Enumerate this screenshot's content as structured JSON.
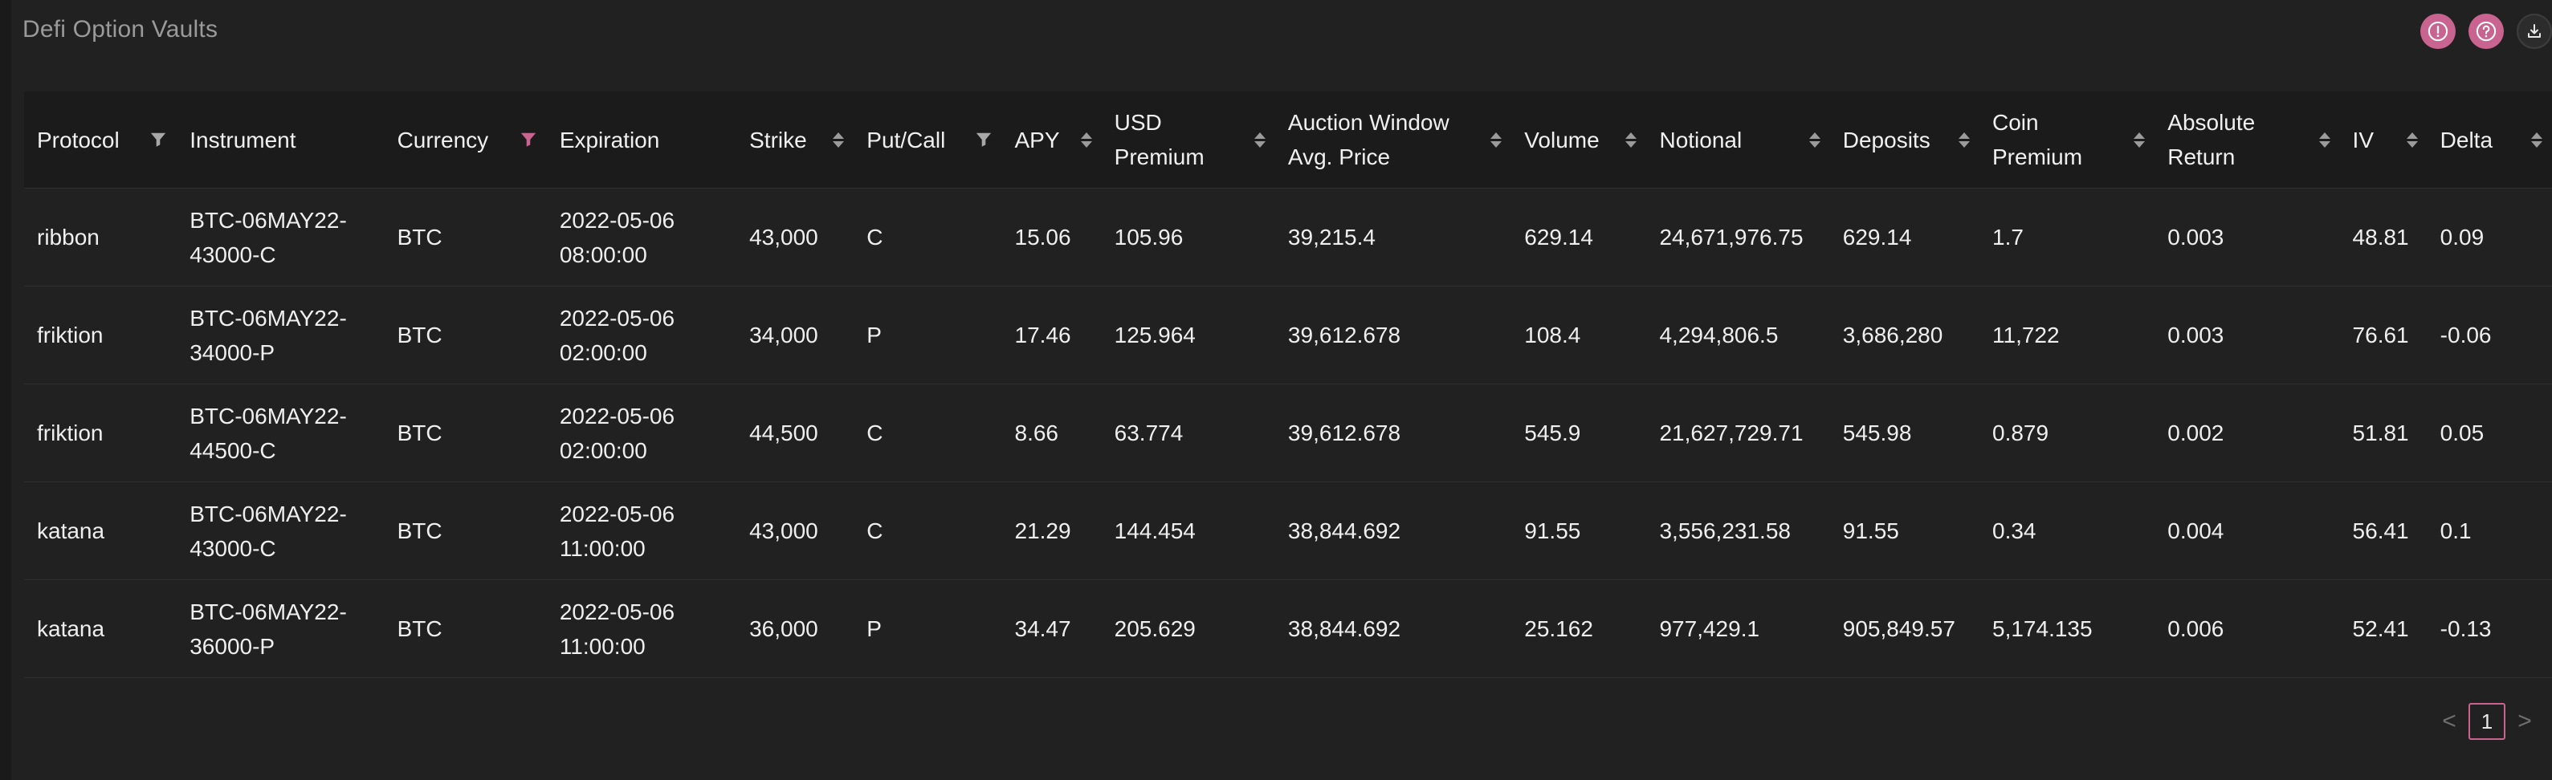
{
  "header": {
    "title": "Defi Option Vaults",
    "actions": [
      {
        "icon": "alert-circle-icon"
      },
      {
        "icon": "help-circle-icon"
      },
      {
        "icon": "download-icon"
      }
    ]
  },
  "colors": {
    "accent": "#c9638f",
    "background": "#212121",
    "header_bg": "#1b1b1b"
  },
  "table": {
    "columns": [
      {
        "label": "Protocol",
        "control": "filter"
      },
      {
        "label": "Instrument",
        "control": "none"
      },
      {
        "label": "Currency",
        "control": "filter-active"
      },
      {
        "label": "Expiration",
        "control": "none"
      },
      {
        "label": "Strike",
        "control": "sort"
      },
      {
        "label": "Put/Call",
        "control": "filter"
      },
      {
        "label": "APY",
        "control": "sort"
      },
      {
        "label": "USD\nPremium",
        "control": "sort"
      },
      {
        "label": "Auction Window\nAvg. Price",
        "control": "sort"
      },
      {
        "label": "Volume",
        "control": "sort"
      },
      {
        "label": "Notional",
        "control": "sort"
      },
      {
        "label": "Deposits",
        "control": "sort"
      },
      {
        "label": "Coin\nPremium",
        "control": "sort"
      },
      {
        "label": "Absolute\nReturn",
        "control": "sort"
      },
      {
        "label": "IV",
        "control": "sort"
      },
      {
        "label": "Delta",
        "control": "sort"
      }
    ],
    "rows": [
      [
        "ribbon",
        "BTC-06MAY22-\n43000-C",
        "BTC",
        "2022-05-06\n08:00:00",
        "43,000",
        "C",
        "15.06",
        "105.96",
        "39,215.4",
        "629.14",
        "24,671,976.75",
        "629.14",
        "1.7",
        "0.003",
        "48.81",
        "0.09"
      ],
      [
        "friktion",
        "BTC-06MAY22-\n34000-P",
        "BTC",
        "2022-05-06\n02:00:00",
        "34,000",
        "P",
        "17.46",
        "125.964",
        "39,612.678",
        "108.4",
        "4,294,806.5",
        "3,686,280",
        "11,722",
        "0.003",
        "76.61",
        "-0.06"
      ],
      [
        "friktion",
        "BTC-06MAY22-\n44500-C",
        "BTC",
        "2022-05-06\n02:00:00",
        "44,500",
        "C",
        "8.66",
        "63.774",
        "39,612.678",
        "545.9",
        "21,627,729.71",
        "545.98",
        "0.879",
        "0.002",
        "51.81",
        "0.05"
      ],
      [
        "katana",
        "BTC-06MAY22-\n43000-C",
        "BTC",
        "2022-05-06\n11:00:00",
        "43,000",
        "C",
        "21.29",
        "144.454",
        "38,844.692",
        "91.55",
        "3,556,231.58",
        "91.55",
        "0.34",
        "0.004",
        "56.41",
        "0.1"
      ],
      [
        "katana",
        "BTC-06MAY22-\n36000-P",
        "BTC",
        "2022-05-06\n11:00:00",
        "36,000",
        "P",
        "34.47",
        "205.629",
        "38,844.692",
        "25.162",
        "977,429.1",
        "905,849.57",
        "5,174.135",
        "0.006",
        "52.41",
        "-0.13"
      ]
    ]
  },
  "pagination": {
    "prev": "<",
    "current": "1",
    "next": ">"
  }
}
